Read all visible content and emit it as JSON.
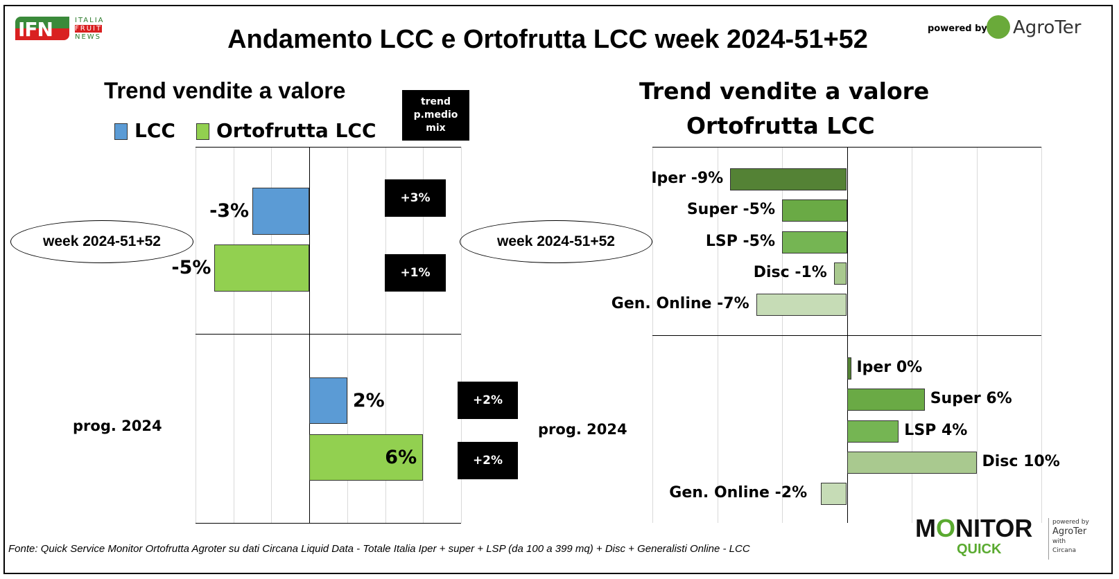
{
  "header": {
    "title": "Andamento LCC e Ortofrutta LCC week 2024-51+52",
    "logo_left": "IFN ITALIA FRUIT NEWS",
    "powered_by": "powered by",
    "logo_right": "AgroTer think fresh"
  },
  "colors": {
    "lcc": "#5b9bd5",
    "ortofrutta": "#92d050",
    "iper": "#548235",
    "super": "#6aaa45",
    "lsp": "#75b553",
    "disc": "#a9c98f",
    "online": "#c6dcb6"
  },
  "footer": {
    "source": "Fonte: Quick Service Monitor Ortofrutta Agroter su dati Circana Liquid Data - Totale Italia Iper + super + LSP (da 100 a 399 mq) + Disc + Generalisti Online - LCC",
    "logo": "MONITOR QUICK powered by AgroTer with Circana"
  },
  "chart_data": [
    {
      "type": "bar",
      "orientation": "horizontal",
      "title": "Trend vendite a valore",
      "legend": [
        "LCC",
        "Ortofrutta LCC"
      ],
      "legend_position": "top",
      "side_header": "trend p.medio mix",
      "categories": [
        "week 2024-51+52",
        "prog. 2024"
      ],
      "series": [
        {
          "name": "LCC",
          "values": [
            -3,
            2
          ],
          "labels": [
            "-3%",
            "2%"
          ]
        },
        {
          "name": "Ortofrutta LCC",
          "values": [
            -5,
            6
          ],
          "labels": [
            "-5%",
            "6%"
          ]
        }
      ],
      "price_mix_trend": {
        "LCC": [
          "+3%",
          "+2%"
        ],
        "Ortofrutta LCC": [
          "+1%",
          "+2%"
        ]
      },
      "xlim": [
        -6,
        8
      ],
      "grid": true
    },
    {
      "type": "bar",
      "orientation": "horizontal",
      "title": "Trend vendite a valore",
      "subtitle": "Ortofrutta LCC",
      "categories": [
        "week 2024-51+52",
        "prog. 2024"
      ],
      "series": [
        {
          "name": "Iper",
          "values": [
            -9,
            0
          ],
          "labels": [
            "Iper -9%",
            "Iper 0%"
          ]
        },
        {
          "name": "Super",
          "values": [
            -5,
            6
          ],
          "labels": [
            "Super -5%",
            "Super 6%"
          ]
        },
        {
          "name": "LSP",
          "values": [
            -5,
            4
          ],
          "labels": [
            "LSP -5%",
            "LSP 4%"
          ]
        },
        {
          "name": "Disc",
          "values": [
            -1,
            10
          ],
          "labels": [
            "Disc -1%",
            "Disc 10%"
          ]
        },
        {
          "name": "Gen. Online",
          "values": [
            -7,
            -2
          ],
          "labels": [
            "Gen. Online -7%",
            "Gen. Online -2%"
          ]
        }
      ],
      "xlim": [
        -15,
        15
      ],
      "grid": true
    }
  ]
}
